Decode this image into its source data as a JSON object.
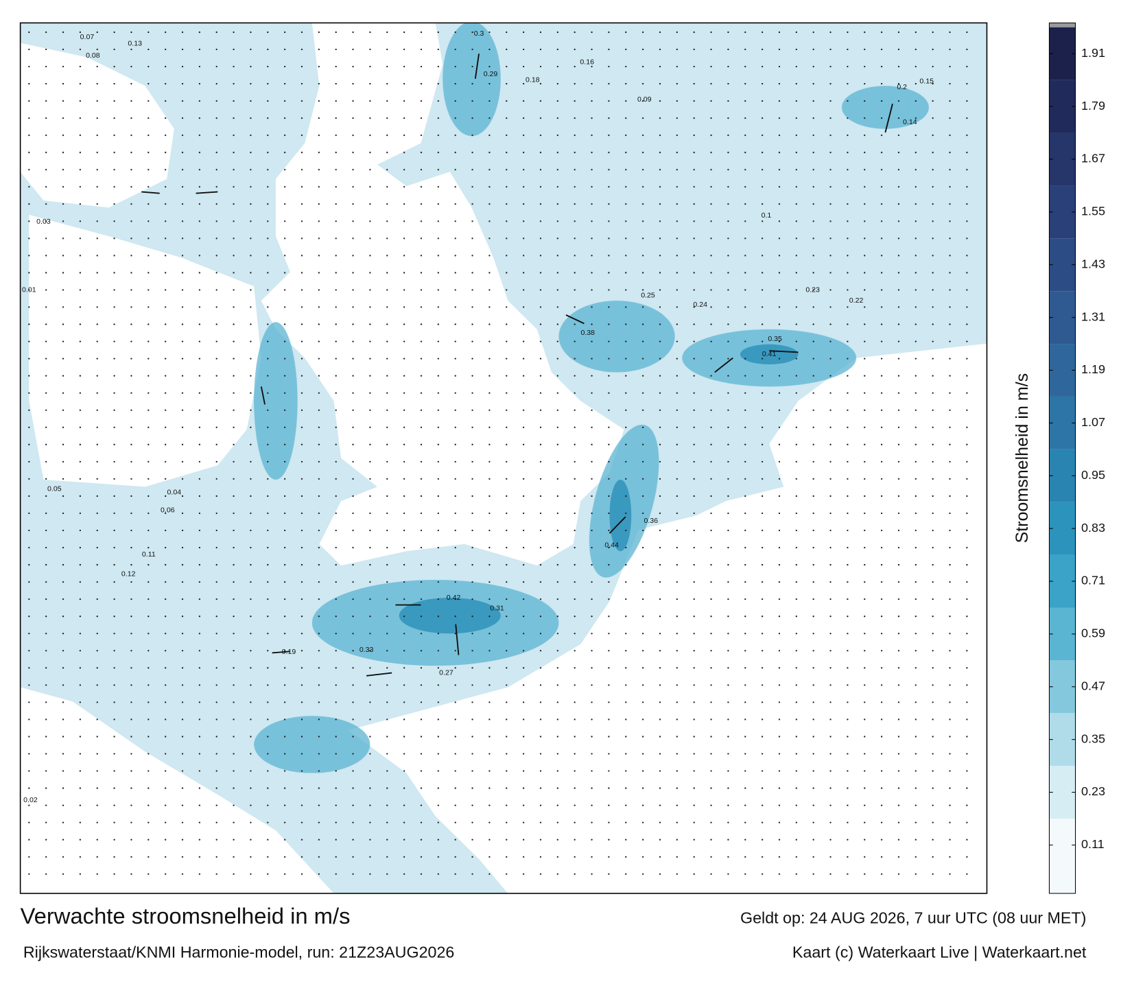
{
  "chart_data": {
    "type": "map",
    "title": "Verwachte stroomsnelheid in m/s",
    "valid_time": "Geldt op: 24 AUG 2026, 7 uur UTC (08 uur MET)",
    "source": "Rijkswaterstaat/KNMI Harmonie-model, run: 21Z23AUG2026",
    "credit": "Kaart (c) Waterkaart Live | Waterkaart.net",
    "colorbar_label": "Stroomsnelheid in m/s",
    "clim": [
      0,
      1.98
    ],
    "cticks": [
      0.11,
      0.23,
      0.35,
      0.47,
      0.59,
      0.71,
      0.83,
      0.95,
      1.07,
      1.19,
      1.31,
      1.43,
      1.55,
      1.67,
      1.79,
      1.91
    ],
    "colors": [
      "#f4fafc",
      "#d6edf4",
      "#b0dcea",
      "#84c8de",
      "#5ab5d2",
      "#3aa3c7",
      "#2b93bc",
      "#2a84b1",
      "#2c75a6",
      "#2f679c",
      "#2f5991",
      "#2c4c85",
      "#2a4078",
      "#26356a",
      "#212b5b",
      "#1b214b",
      "#151a3a"
    ],
    "map_labels": [
      "0.44",
      "0.41",
      "0.42",
      "0.3",
      "0.29",
      "0.38",
      "0.36",
      "0.35",
      "0.31",
      "0.27",
      "0.25",
      "0.24",
      "0.22",
      "0.2",
      "0.18",
      "0.16",
      "0.15",
      "0.14",
      "0.13",
      "0.12",
      "0.11",
      "0.1",
      "0.09",
      "0.08",
      "0.07",
      "0.06",
      "0.05",
      "0.04",
      "0.03",
      "0.02",
      "0.01",
      "0.19",
      "0.23",
      "0.33"
    ]
  }
}
